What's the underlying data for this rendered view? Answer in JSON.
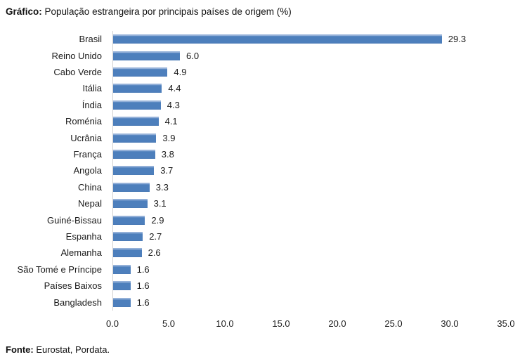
{
  "title": {
    "prefix": "Gráfico:",
    "rest": " População estrangeira por principais países de origem (%)"
  },
  "source": {
    "prefix": "Fonte:",
    "rest": " Eurostat, Pordata."
  },
  "colors": {
    "bar": "#4d7fbc",
    "bar_highlight": "#93b0d8",
    "axis_line": "#d2d2d2",
    "text": "#1a1a1a"
  },
  "chart_data": {
    "type": "bar",
    "orientation": "horizontal",
    "title": "População estrangeira por principais países de origem (%)",
    "xlabel": "",
    "ylabel": "",
    "xlim": [
      0,
      35
    ],
    "x_tick_labels": [
      "0.0",
      "5.0",
      "10.0",
      "15.0",
      "20.0",
      "25.0",
      "30.0",
      "35.0"
    ],
    "grid": false,
    "legend": false,
    "categories": [
      "Brasil",
      "Reino Unido",
      "Cabo Verde",
      "Itália",
      "Índia",
      "Roménia",
      "Ucrânia",
      "França",
      "Angola",
      "China",
      "Nepal",
      "Guiné-Bissau",
      "Espanha",
      "Alemanha",
      "São Tomé e Príncipe",
      "Países Baixos",
      "Bangladesh"
    ],
    "values": [
      29.3,
      6.0,
      4.9,
      4.4,
      4.3,
      4.1,
      3.9,
      3.8,
      3.7,
      3.3,
      3.1,
      2.9,
      2.7,
      2.6,
      1.6,
      1.6,
      1.6
    ],
    "value_labels": [
      "29.3",
      "6.0",
      "4.9",
      "4.4",
      "4.3",
      "4.1",
      "3.9",
      "3.8",
      "3.7",
      "3.3",
      "3.1",
      "2.9",
      "2.7",
      "2.6",
      "1.6",
      "1.6",
      "1.6"
    ]
  }
}
